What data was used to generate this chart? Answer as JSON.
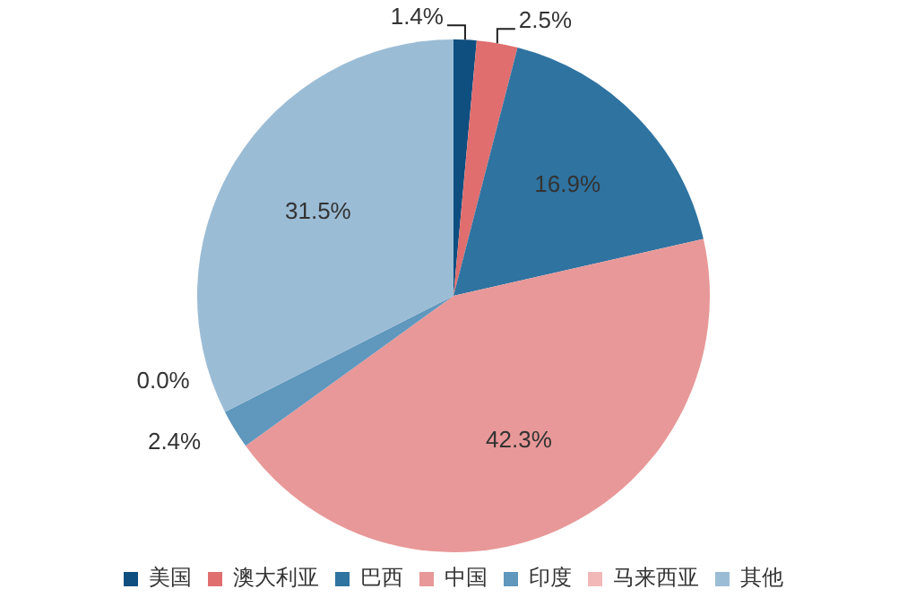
{
  "chart_data": {
    "type": "pie",
    "categories": [
      "美国",
      "澳大利亚",
      "巴西",
      "中国",
      "印度",
      "马来西亚",
      "其他"
    ],
    "values": [
      1.4,
      2.5,
      16.9,
      42.3,
      2.4,
      0.0,
      31.5
    ],
    "colors": [
      "#0f4f80",
      "#e06e6e",
      "#2f73a0",
      "#e89898",
      "#5f97bd",
      "#f2b8b8",
      "#9bbcd5"
    ],
    "value_labels": [
      "1.4%",
      "2.5%",
      "16.9%",
      "42.3%",
      "2.4%",
      "0.0%",
      "31.5%"
    ],
    "legend": "bottom"
  }
}
